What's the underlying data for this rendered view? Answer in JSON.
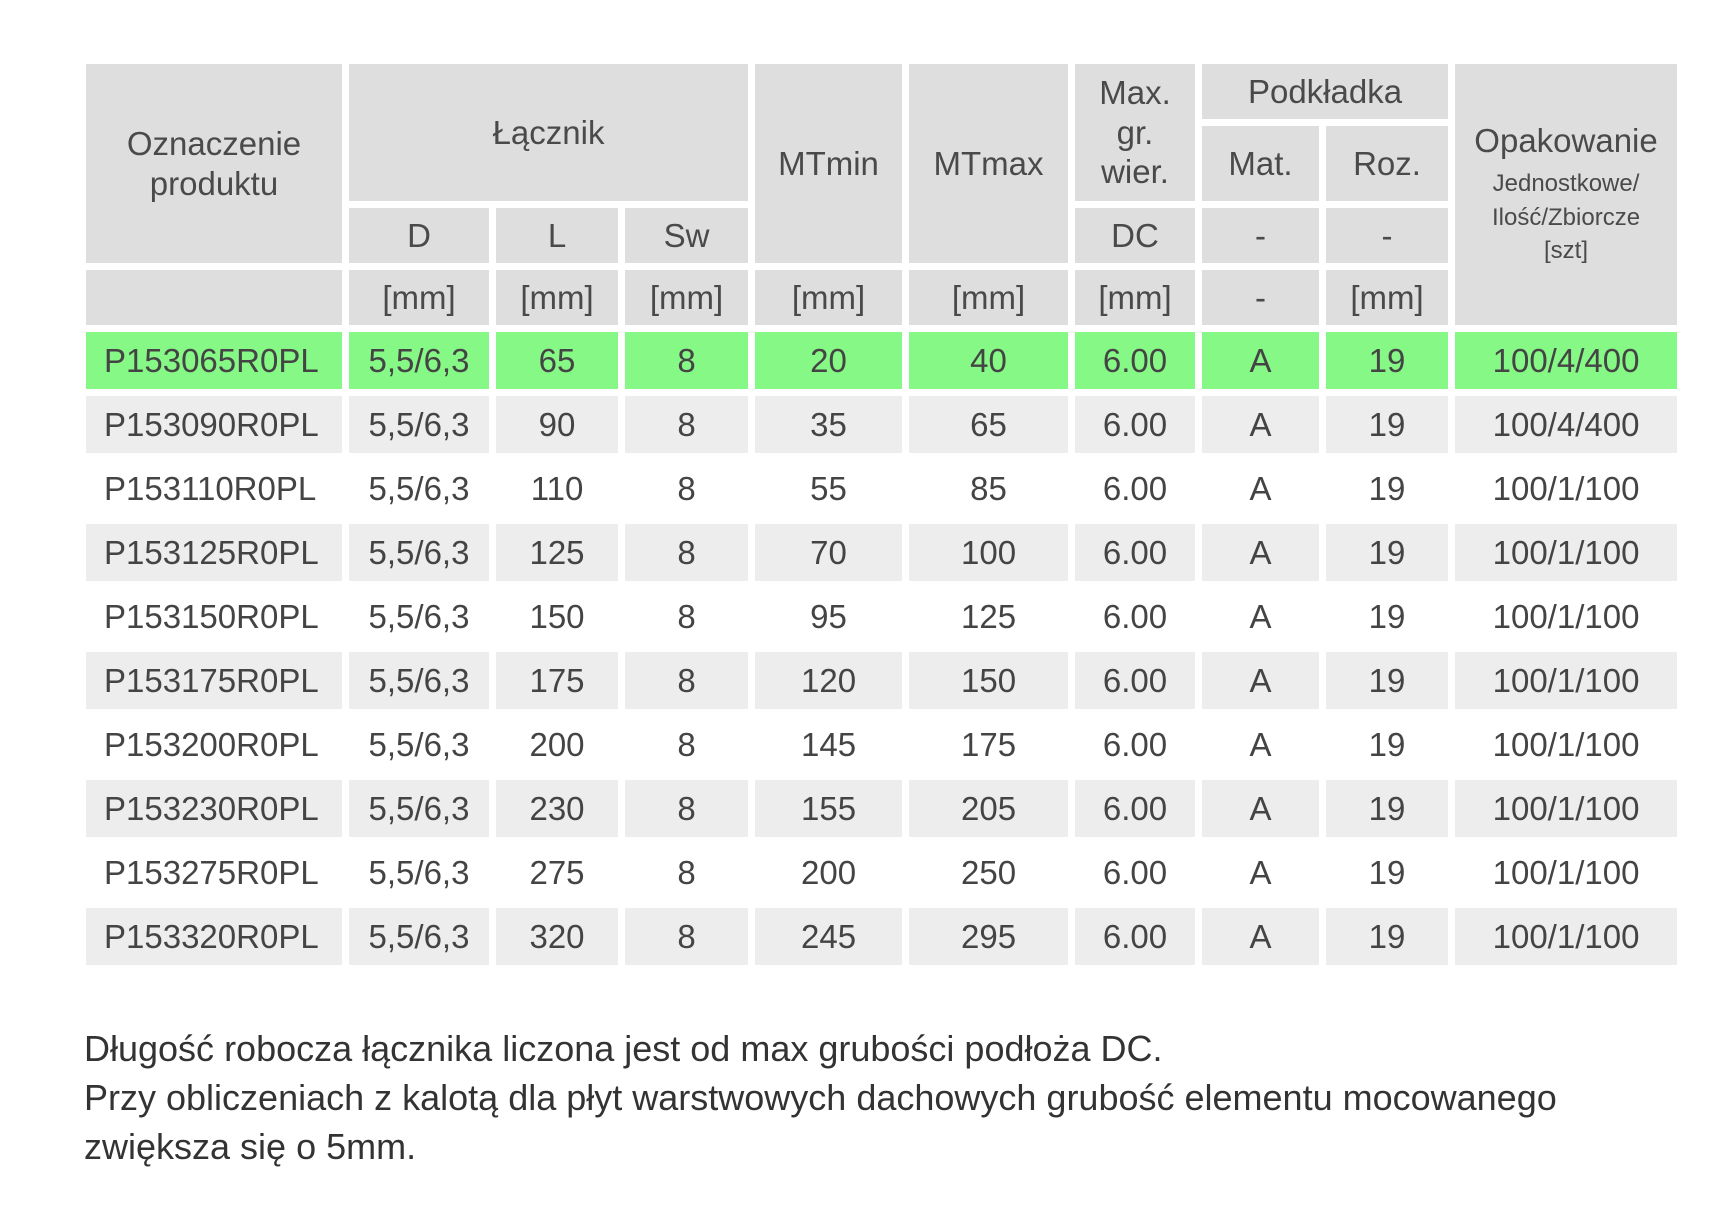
{
  "table": {
    "headers": {
      "product_code": "Oznaczenie produktu",
      "fastener": "Łącznik",
      "mt_min": "MTmin",
      "mt_max": "MTmax",
      "max_thickness": "Max. gr. wier.",
      "washer": "Podkładka",
      "packaging": "Opakowanie",
      "packaging_sub": "Jednostkowe/ Ilość/Zbiorcze [szt]",
      "d": "D",
      "l": "L",
      "sw": "Sw",
      "dc": "DC",
      "mat": "Mat.",
      "roz": "Roz.",
      "mat_sub": "-",
      "roz_sub": "-",
      "units": {
        "d": "[mm]",
        "l": "[mm]",
        "sw": "[mm]",
        "mt_min": "[mm]",
        "mt_max": "[mm]",
        "dc": "[mm]",
        "mat": "-",
        "roz": "[mm]"
      }
    },
    "rows": [
      {
        "code": "P153065R0PL",
        "d": "5,5/6,3",
        "l": "65",
        "sw": "8",
        "mt_min": "20",
        "mt_max": "40",
        "dc": "6.00",
        "mat": "A",
        "roz": "19",
        "pack": "100/4/400"
      },
      {
        "code": "P153090R0PL",
        "d": "5,5/6,3",
        "l": "90",
        "sw": "8",
        "mt_min": "35",
        "mt_max": "65",
        "dc": "6.00",
        "mat": "A",
        "roz": "19",
        "pack": "100/4/400"
      },
      {
        "code": "P153110R0PL",
        "d": "5,5/6,3",
        "l": "110",
        "sw": "8",
        "mt_min": "55",
        "mt_max": "85",
        "dc": "6.00",
        "mat": "A",
        "roz": "19",
        "pack": "100/1/100"
      },
      {
        "code": "P153125R0PL",
        "d": "5,5/6,3",
        "l": "125",
        "sw": "8",
        "mt_min": "70",
        "mt_max": "100",
        "dc": "6.00",
        "mat": "A",
        "roz": "19",
        "pack": "100/1/100"
      },
      {
        "code": "P153150R0PL",
        "d": "5,5/6,3",
        "l": "150",
        "sw": "8",
        "mt_min": "95",
        "mt_max": "125",
        "dc": "6.00",
        "mat": "A",
        "roz": "19",
        "pack": "100/1/100"
      },
      {
        "code": "P153175R0PL",
        "d": "5,5/6,3",
        "l": "175",
        "sw": "8",
        "mt_min": "120",
        "mt_max": "150",
        "dc": "6.00",
        "mat": "A",
        "roz": "19",
        "pack": "100/1/100"
      },
      {
        "code": "P153200R0PL",
        "d": "5,5/6,3",
        "l": "200",
        "sw": "8",
        "mt_min": "145",
        "mt_max": "175",
        "dc": "6.00",
        "mat": "A",
        "roz": "19",
        "pack": "100/1/100"
      },
      {
        "code": "P153230R0PL",
        "d": "5,5/6,3",
        "l": "230",
        "sw": "8",
        "mt_min": "155",
        "mt_max": "205",
        "dc": "6.00",
        "mat": "A",
        "roz": "19",
        "pack": "100/1/100"
      },
      {
        "code": "P153275R0PL",
        "d": "5,5/6,3",
        "l": "275",
        "sw": "8",
        "mt_min": "200",
        "mt_max": "250",
        "dc": "6.00",
        "mat": "A",
        "roz": "19",
        "pack": "100/1/100"
      },
      {
        "code": "P153320R0PL",
        "d": "5,5/6,3",
        "l": "320",
        "sw": "8",
        "mt_min": "245",
        "mt_max": "295",
        "dc": "6.00",
        "mat": "A",
        "roz": "19",
        "pack": "100/1/100"
      }
    ],
    "highlight_color": "#86f886"
  },
  "notes": {
    "line1": "Długość robocza łącznika liczona jest od max grubości podłoża DC.",
    "line2": "Przy obliczeniach z kalotą dla płyt warstwowych dachowych grubość elementu mocowanego zwiększa się o 5mm."
  }
}
